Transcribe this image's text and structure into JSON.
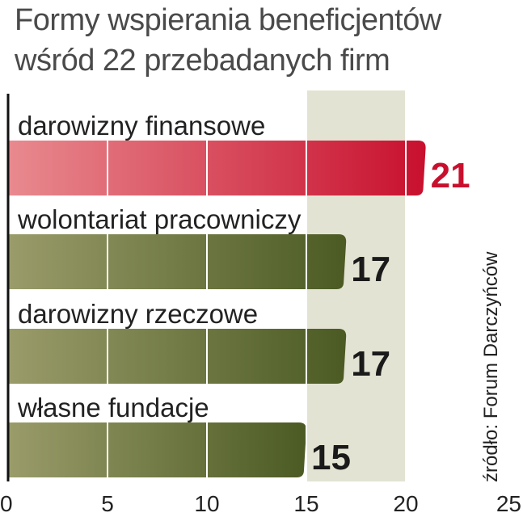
{
  "chart_data": {
    "type": "bar",
    "orientation": "horizontal",
    "title_lines": [
      "Formy wspierania beneficjentów",
      "wśród 22 przebadanych firm"
    ],
    "categories": [
      "darowizny finansowe",
      "wolontariat pracowniczy",
      "darowizny rzeczowe",
      "własne fundacje"
    ],
    "values": [
      21,
      17,
      17,
      15
    ],
    "value_labels": [
      "21",
      "17",
      "17",
      "15"
    ],
    "xlim": [
      0,
      25
    ],
    "x_ticks": [
      0,
      5,
      10,
      15,
      20,
      25
    ],
    "x_tick_labels": [
      "0",
      "5",
      "10",
      "15",
      "20",
      "25"
    ],
    "highlight_range": [
      15,
      20
    ],
    "grid": true,
    "source": "źródło: Forum Darczyńców",
    "colors": {
      "highlight_bar_start": "#e88a8f",
      "highlight_bar_end": "#c8102e",
      "highlight_label": "#c8102e",
      "bar_start": "#9a9c6a",
      "bar_end": "#4b5a23",
      "label": "#1a1a1a",
      "band": "#e3e3d3",
      "grid": "#ffffff",
      "axis": "#111111",
      "text": "#222222"
    }
  }
}
